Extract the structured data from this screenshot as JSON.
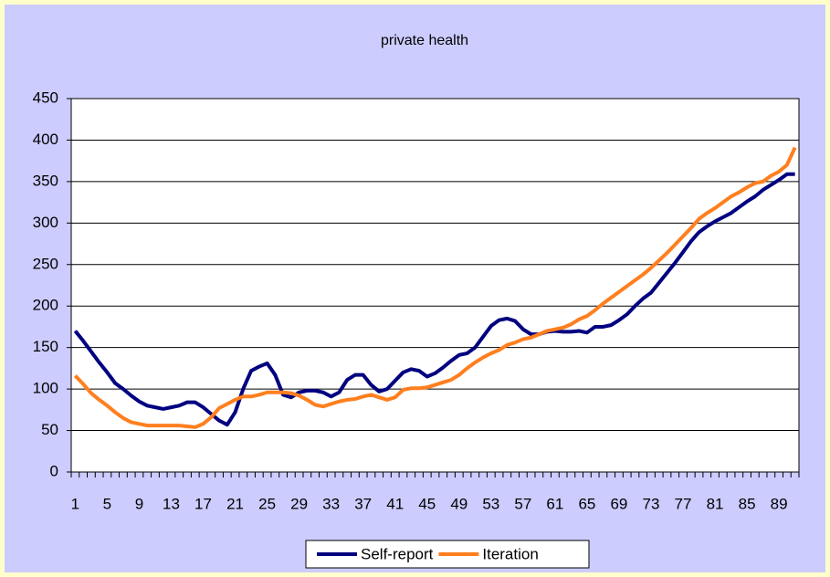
{
  "chart_data": {
    "type": "line",
    "title": "private health",
    "categories": [
      1,
      null,
      null,
      null,
      5,
      null,
      null,
      null,
      9,
      null,
      null,
      null,
      13,
      null,
      null,
      null,
      17,
      null,
      null,
      null,
      21,
      null,
      null,
      null,
      25,
      null,
      null,
      null,
      29,
      null,
      null,
      null,
      33,
      null,
      null,
      null,
      37,
      null,
      null,
      null,
      41,
      null,
      null,
      null,
      45,
      null,
      null,
      null,
      49,
      null,
      null,
      null,
      53,
      null,
      null,
      null,
      57,
      null,
      null,
      null,
      61,
      null,
      null,
      null,
      65,
      null,
      null,
      null,
      69,
      null,
      null,
      null,
      73,
      null,
      null,
      null,
      77,
      null,
      null,
      null,
      81,
      null,
      null,
      null,
      85,
      null,
      null,
      null,
      89,
      null,
      null
    ],
    "series": [
      {
        "name": "Self-report",
        "color": "#000080",
        "values": [
          170,
          158,
          145,
          132,
          120,
          107,
          100,
          92,
          85,
          80,
          78,
          76,
          78,
          80,
          84,
          84,
          78,
          70,
          62,
          57,
          72,
          100,
          122,
          127,
          131,
          117,
          93,
          90,
          96,
          98,
          98,
          96,
          91,
          96,
          111,
          117,
          117,
          105,
          97,
          100,
          110,
          120,
          124,
          122,
          115,
          119,
          126,
          134,
          141,
          143,
          150,
          163,
          176,
          183,
          185,
          182,
          172,
          166,
          166,
          169,
          170,
          169,
          169,
          170,
          168,
          175,
          175,
          177,
          183,
          190,
          200,
          209,
          216,
          228,
          240,
          252,
          265,
          278,
          289,
          296,
          302,
          307,
          312,
          319,
          326,
          332,
          340,
          346,
          352,
          359,
          359
        ]
      },
      {
        "name": "Iteration",
        "color": "#ff7f1f",
        "values": [
          116,
          106,
          95,
          87,
          80,
          72,
          65,
          60,
          58,
          56,
          56,
          56,
          56,
          56,
          55,
          54,
          58,
          66,
          77,
          82,
          87,
          91,
          91,
          93,
          96,
          96,
          96,
          95,
          92,
          87,
          81,
          79,
          82,
          85,
          87,
          88,
          91,
          93,
          90,
          87,
          90,
          99,
          101,
          101,
          102,
          105,
          108,
          111,
          117,
          125,
          132,
          138,
          143,
          147,
          153,
          156,
          160,
          162,
          166,
          170,
          172,
          174,
          178,
          184,
          188,
          195,
          203,
          210,
          217,
          224,
          231,
          238,
          246,
          255,
          264,
          274,
          284,
          294,
          305,
          312,
          318,
          325,
          332,
          337,
          343,
          348,
          350,
          357,
          362,
          370,
          391
        ]
      }
    ],
    "ylim": [
      0,
      450
    ],
    "yticks": [
      0,
      50,
      100,
      150,
      200,
      250,
      300,
      350,
      400,
      450
    ],
    "grid": true,
    "legend": "bottom"
  }
}
